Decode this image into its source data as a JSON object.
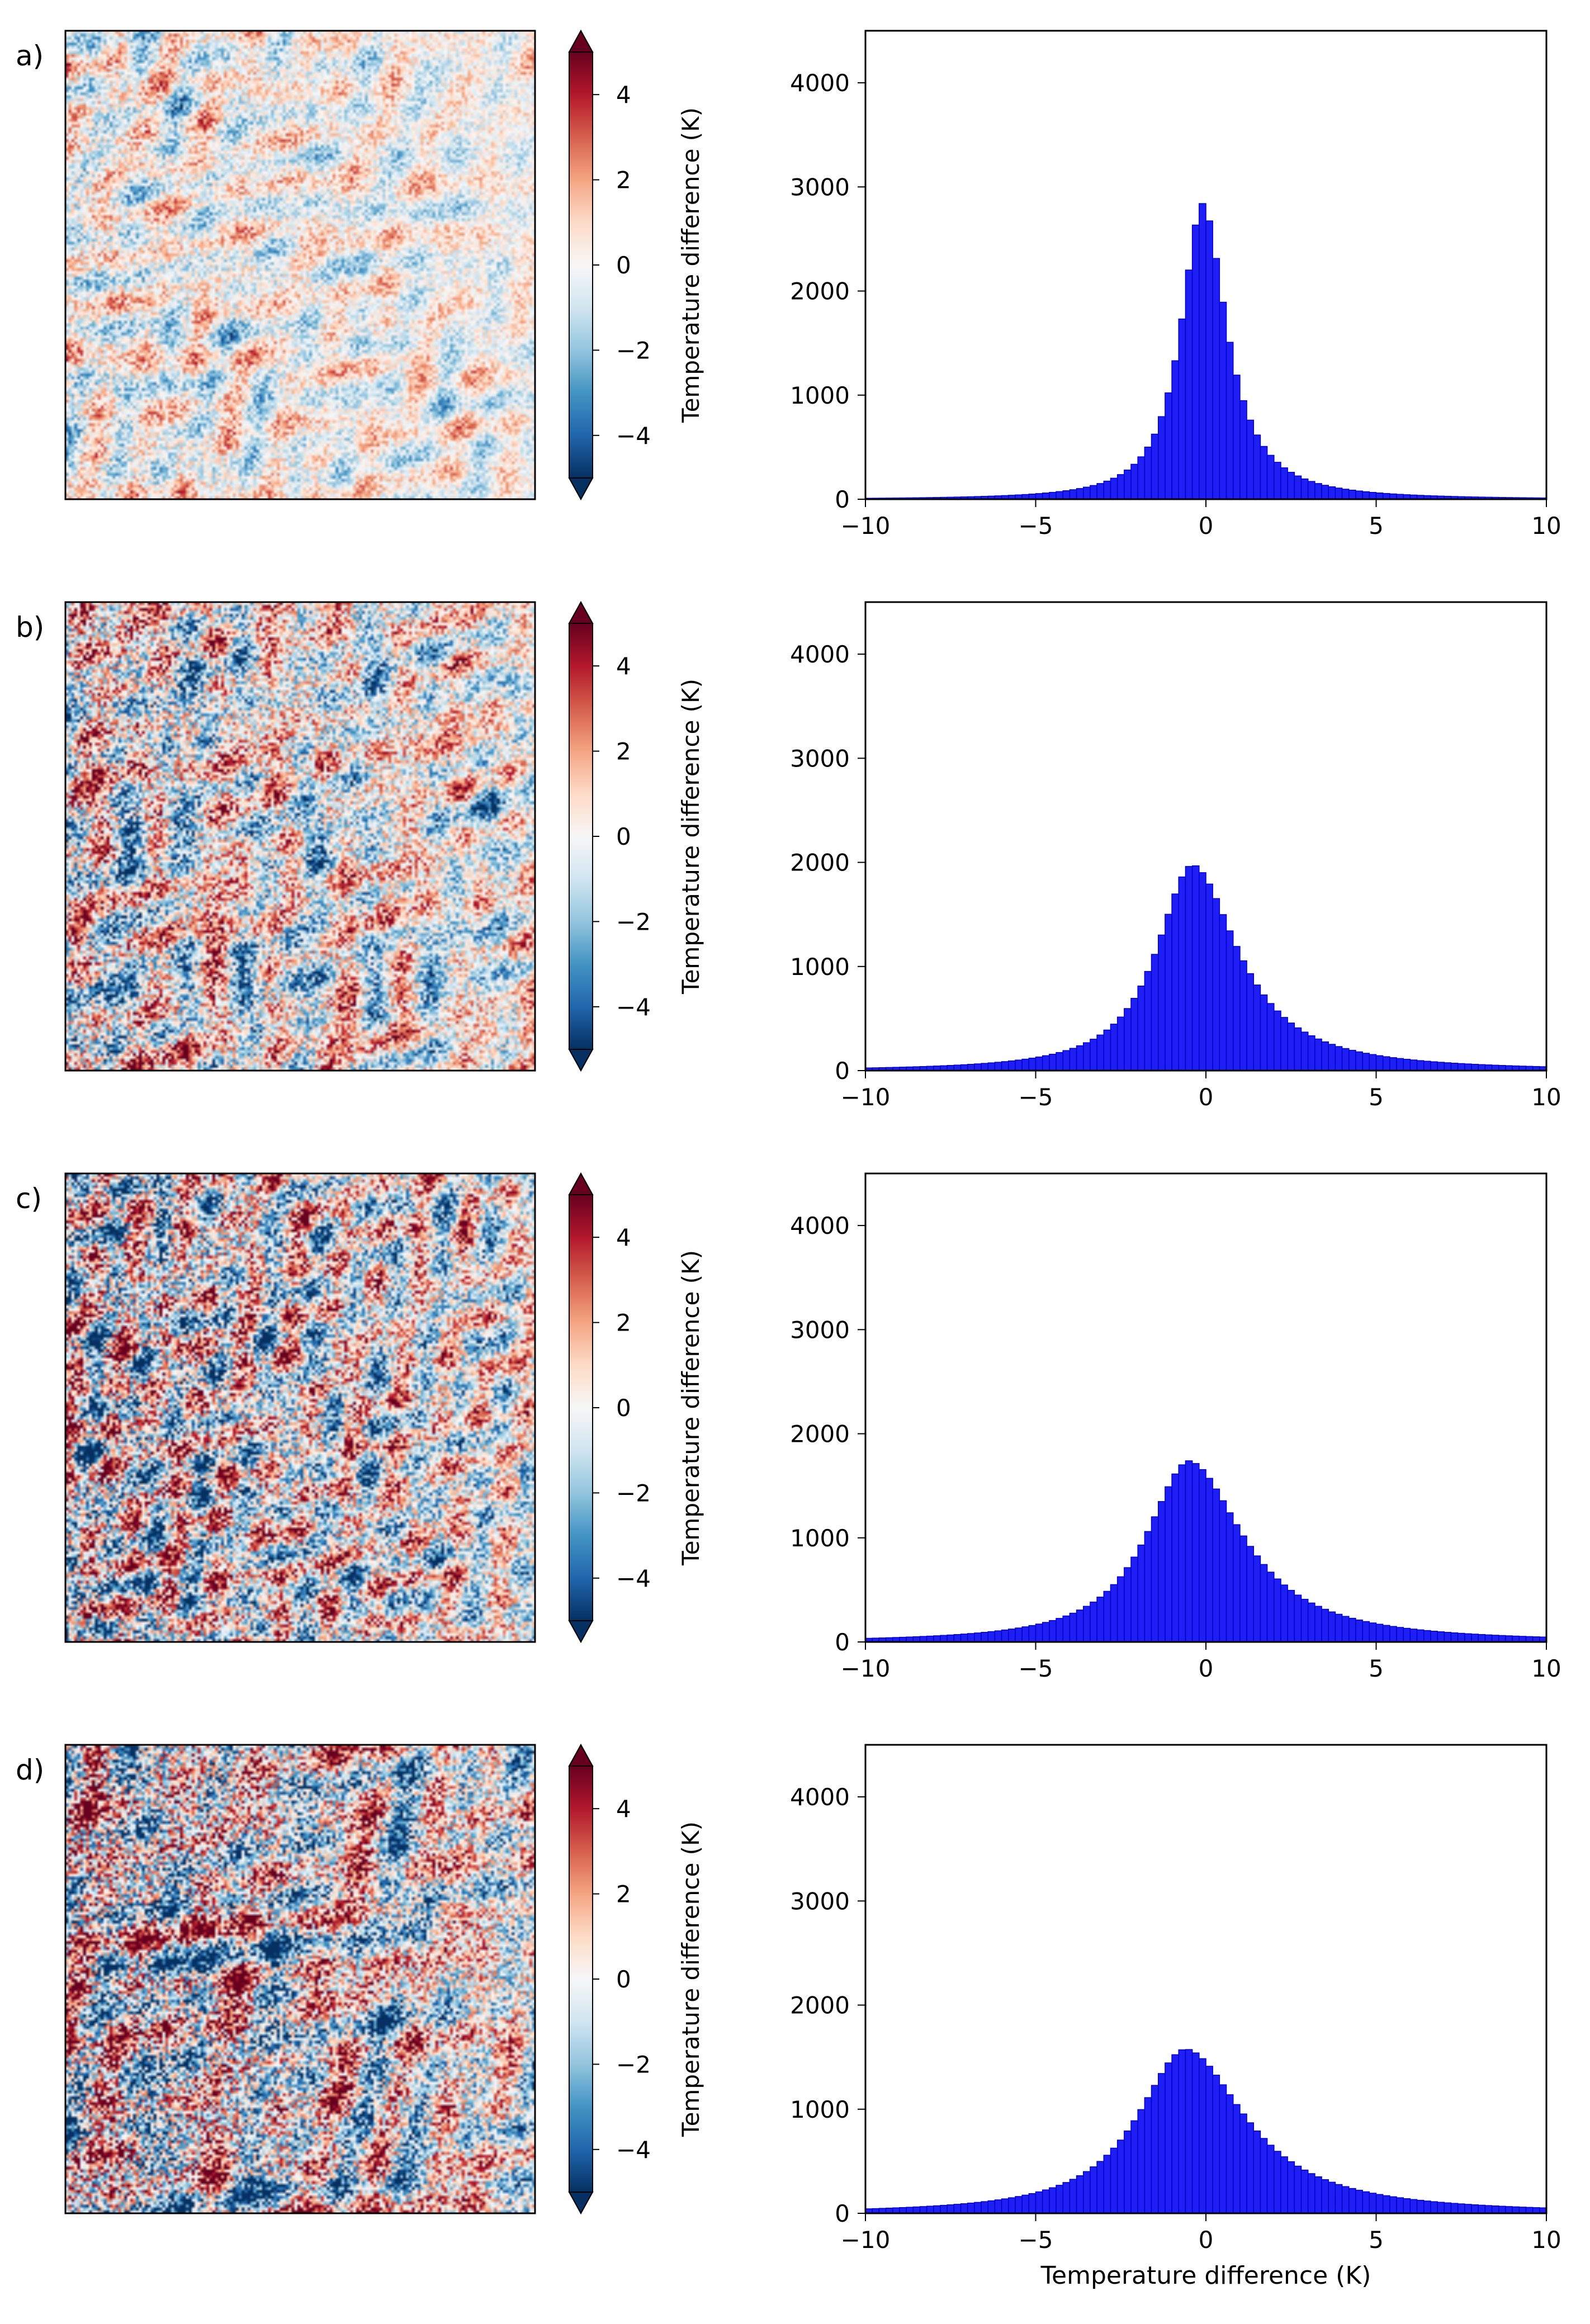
{
  "figure": {
    "colorbar": {
      "label": "Temperature difference (K)",
      "ticks": [
        "4",
        "2",
        "0",
        "−2",
        "−4"
      ],
      "tick_values": [
        4,
        2,
        0,
        -2,
        -4
      ],
      "range": [
        -5,
        5
      ],
      "extend": "both",
      "colormap": [
        "#053061",
        "#2166ac",
        "#4393c3",
        "#92c5de",
        "#d1e5f0",
        "#f7f7f7",
        "#fddbc7",
        "#f4a582",
        "#d6604d",
        "#b2182b",
        "#67001f"
      ]
    },
    "hist_style": {
      "fill": "#1f1ff5",
      "edge": "#0000cc"
    },
    "xlabel": "Temperature difference (K)"
  },
  "chart_data": [
    {
      "type": "bar",
      "panel_label": "a)",
      "title": "",
      "xlabel": "",
      "ylabel": "",
      "xlim": [
        -10,
        10
      ],
      "ylim": [
        0,
        4500
      ],
      "xticks": [
        "−10",
        "−5",
        "0",
        "5",
        "10"
      ],
      "xtick_values": [
        -10,
        -5,
        0,
        5,
        10
      ],
      "yticks": [
        "0",
        "1000",
        "2000",
        "3000",
        "4000"
      ],
      "ytick_values": [
        0,
        1000,
        2000,
        3000,
        4000
      ],
      "histogram": {
        "bin_width": 0.2,
        "peak_center": -0.1,
        "peak_count": 2840,
        "spread_left": 0.75,
        "spread_right": 0.85
      }
    },
    {
      "type": "bar",
      "panel_label": "b)",
      "title": "",
      "xlabel": "",
      "ylabel": "",
      "xlim": [
        -10,
        10
      ],
      "ylim": [
        0,
        4500
      ],
      "xticks": [
        "−10",
        "−5",
        "0",
        "5",
        "10"
      ],
      "xtick_values": [
        -10,
        -5,
        0,
        5,
        10
      ],
      "yticks": [
        "0",
        "1000",
        "2000",
        "3000",
        "4000"
      ],
      "ytick_values": [
        0,
        1000,
        2000,
        3000,
        4000
      ],
      "histogram": {
        "bin_width": 0.2,
        "peak_center": -0.4,
        "peak_count": 1980,
        "spread_left": 1.25,
        "spread_right": 1.6
      }
    },
    {
      "type": "bar",
      "panel_label": "c)",
      "title": "",
      "xlabel": "",
      "ylabel": "",
      "xlim": [
        -10,
        10
      ],
      "ylim": [
        0,
        4500
      ],
      "xticks": [
        "−10",
        "−5",
        "0",
        "5",
        "10"
      ],
      "xtick_values": [
        -10,
        -5,
        0,
        5,
        10
      ],
      "yticks": [
        "0",
        "1000",
        "2000",
        "3000",
        "4000"
      ],
      "ytick_values": [
        0,
        1000,
        2000,
        3000,
        4000
      ],
      "histogram": {
        "bin_width": 0.2,
        "peak_center": -0.5,
        "peak_count": 1740,
        "spread_left": 1.5,
        "spread_right": 1.9
      }
    },
    {
      "type": "bar",
      "panel_label": "d)",
      "title": "",
      "xlabel": "Temperature difference (K)",
      "ylabel": "",
      "xlim": [
        -10,
        10
      ],
      "ylim": [
        0,
        4500
      ],
      "xticks": [
        "−10",
        "−5",
        "0",
        "5",
        "10"
      ],
      "xtick_values": [
        -10,
        -5,
        0,
        5,
        10
      ],
      "yticks": [
        "0",
        "1000",
        "2000",
        "3000",
        "4000"
      ],
      "ytick_values": [
        0,
        1000,
        2000,
        3000,
        4000
      ],
      "histogram": {
        "bin_width": 0.2,
        "peak_center": -0.6,
        "peak_count": 1580,
        "spread_left": 1.7,
        "spread_right": 2.1
      }
    }
  ]
}
